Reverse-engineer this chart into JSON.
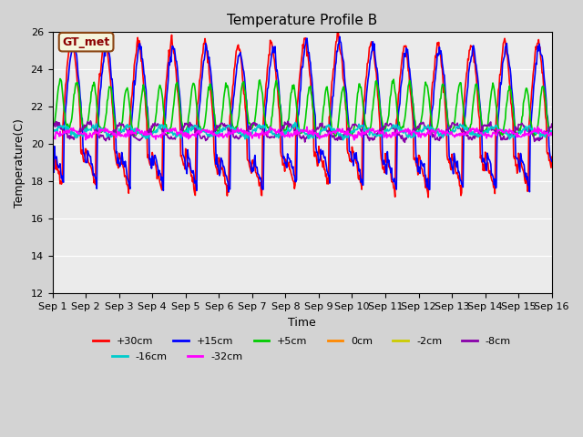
{
  "title": "Temperature Profile B",
  "xlabel": "Time",
  "ylabel": "Temperature(C)",
  "ylim": [
    12,
    26
  ],
  "xlim": [
    0,
    15
  ],
  "xtick_labels": [
    "Sep 1",
    "Sep 2",
    "Sep 3",
    "Sep 4",
    "Sep 5",
    "Sep 6",
    "Sep 7",
    "Sep 8",
    "Sep 9",
    "Sep 10",
    "Sep 11",
    "Sep 12",
    "Sep 13",
    "Sep 14",
    "Sep 15",
    "Sep 16"
  ],
  "ytick_values": [
    12,
    14,
    16,
    18,
    20,
    22,
    24,
    26
  ],
  "annotation_text": "GT_met",
  "series_order": [
    "+30cm",
    "+15cm",
    "+5cm",
    "0cm",
    "-2cm",
    "-8cm",
    "-16cm",
    "-32cm"
  ],
  "series": {
    "+30cm": {
      "color": "#ff0000",
      "amp": 5.0,
      "base": 20.5,
      "phase": 0.0,
      "sharp": 3.0
    },
    "+15cm": {
      "color": "#0000ff",
      "amp": 4.8,
      "base": 20.5,
      "phase": 0.05,
      "sharp": 3.0
    },
    "+5cm": {
      "color": "#00cc00",
      "amp": 2.5,
      "base": 20.7,
      "phase": 0.15,
      "sharp": 2.0
    },
    "0cm": {
      "color": "#ff8800",
      "amp": 1.2,
      "base": 20.6,
      "phase": 0.25,
      "sharp": 1.5
    },
    "-2cm": {
      "color": "#cccc00",
      "amp": 0.8,
      "base": 20.6,
      "phase": 0.3,
      "sharp": 1.2
    },
    "-8cm": {
      "color": "#8800aa",
      "amp": 0.4,
      "base": 20.7,
      "phase": 0.5,
      "sharp": 1.0
    },
    "-16cm": {
      "color": "#00cccc",
      "amp": 0.25,
      "base": 20.7,
      "phase": 0.7,
      "sharp": 1.0
    },
    "-32cm": {
      "color": "#ff00ff",
      "amp": 0.15,
      "base": 20.6,
      "phase": 1.0,
      "sharp": 1.0
    }
  },
  "legend_rows": [
    [
      "+30cm",
      "+15cm",
      "+5cm",
      "0cm",
      "-2cm",
      "-8cm"
    ],
    [
      "-16cm",
      "-32cm"
    ]
  ],
  "fig_width": 6.4,
  "fig_height": 4.8,
  "dpi": 100,
  "background_color": "#d3d3d3",
  "plot_bg_color": "#ebebeb",
  "title_fontsize": 11,
  "axis_label_fontsize": 9,
  "tick_fontsize": 8,
  "line_width": 1.2
}
